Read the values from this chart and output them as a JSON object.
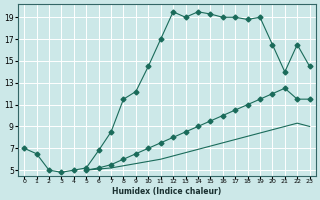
{
  "xlabel": "Humidex (Indice chaleur)",
  "line_color": "#1a6b5a",
  "bg_color": "#cce8e8",
  "grid_color": "#ffffff",
  "xlim": [
    -0.5,
    23.5
  ],
  "ylim": [
    4.5,
    20.2
  ],
  "xticks": [
    0,
    1,
    2,
    3,
    4,
    5,
    6,
    7,
    8,
    9,
    10,
    11,
    12,
    13,
    14,
    15,
    16,
    17,
    18,
    19,
    20,
    21,
    22,
    23
  ],
  "yticks": [
    5,
    7,
    9,
    11,
    13,
    15,
    17,
    19
  ],
  "line1_x": [
    0,
    1,
    2,
    3,
    4,
    5,
    6,
    7,
    8,
    9,
    10,
    11,
    12,
    13,
    14,
    15,
    16,
    17,
    18,
    19,
    20,
    21,
    22,
    23
  ],
  "line1_y": [
    7,
    6.5,
    5,
    4.8,
    5,
    5.2,
    6.8,
    8.5,
    11.5,
    12.2,
    14.5,
    17.0,
    19.5,
    19.0,
    19.5,
    19.3,
    19.0,
    19.0,
    18.8,
    19.0,
    16.5,
    14.0,
    16.5,
    14.5
  ],
  "line1_has_markers": true,
  "line2_x": [
    5,
    6,
    7,
    8,
    9,
    10,
    11,
    12,
    13,
    14,
    15,
    16,
    17,
    18,
    19,
    20,
    21,
    22,
    23
  ],
  "line2_y": [
    5,
    5.2,
    5.5,
    6,
    6.5,
    7,
    7.5,
    8,
    8.5,
    9,
    9.5,
    10,
    10.5,
    11,
    11.5,
    12,
    12.5,
    11.5,
    11.5
  ],
  "line2_has_markers": false,
  "line3_x": [
    5,
    6,
    7,
    8,
    9,
    10,
    11,
    12,
    13,
    14,
    15,
    16,
    17,
    18,
    19,
    20,
    21,
    22,
    23
  ],
  "line3_y": [
    5,
    5.1,
    5.2,
    5.4,
    5.6,
    5.8,
    6.0,
    6.3,
    6.6,
    6.9,
    7.2,
    7.5,
    7.8,
    8.1,
    8.4,
    8.7,
    9.0,
    9.3,
    9.0
  ],
  "line3_has_markers": false
}
